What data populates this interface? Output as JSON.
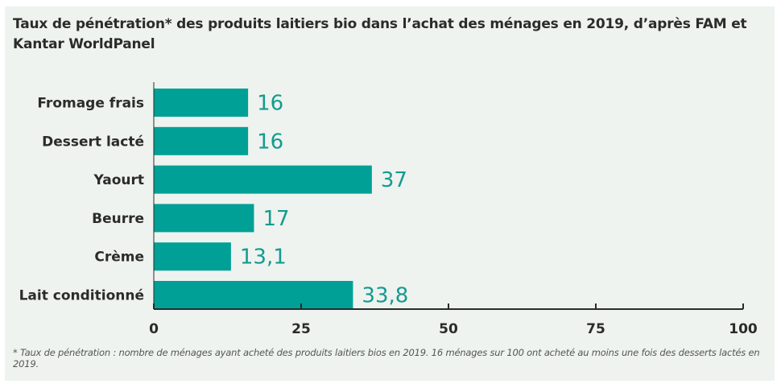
{
  "chart_data": {
    "type": "bar",
    "orientation": "horizontal",
    "title": "Taux de pénétration* des produits laitiers bio dans l’achat des ménages en 2019, d’après FAM et Kantar WorldPanel",
    "categories": [
      "Fromage frais",
      "Dessert lacté",
      "Yaourt",
      "Beurre",
      "Crème",
      "Lait conditionné"
    ],
    "values": [
      16,
      16,
      37,
      17,
      13.1,
      33.8
    ],
    "value_labels": [
      "16",
      "16",
      "37",
      "17",
      "13,1",
      "33,8"
    ],
    "xlim": [
      0,
      100
    ],
    "xticks": [
      0,
      25,
      50,
      75,
      100
    ],
    "xtick_labels": [
      "0",
      "25",
      "50",
      "75",
      "100"
    ],
    "grid": false,
    "legend": "none",
    "bar_color": "#00a096",
    "value_label_color": "#149b90",
    "footnote": "* Taux de pénétration : nombre de ménages ayant acheté des produits laitiers bios en 2019. 16 ménages sur 100 ont acheté au moins une fois des desserts lactés en 2019."
  },
  "colors": {
    "panel_background": "#eef3ef",
    "axis": "#2b2b2b",
    "text": "#2b2b2b"
  }
}
